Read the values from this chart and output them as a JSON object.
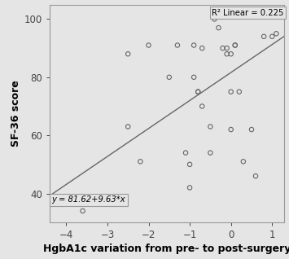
{
  "x_data": [
    -3.6,
    -2.5,
    -2.5,
    -2.2,
    -2.0,
    -1.5,
    -1.3,
    -1.1,
    -1.0,
    -1.0,
    -0.9,
    -0.9,
    -0.8,
    -0.8,
    -0.7,
    -0.7,
    -0.5,
    -0.5,
    -0.4,
    -0.3,
    -0.2,
    -0.1,
    -0.1,
    0.0,
    0.0,
    0.0,
    0.1,
    0.1,
    0.2,
    0.3,
    0.5,
    0.6,
    0.8,
    1.0,
    1.1
  ],
  "y_data": [
    34,
    88,
    63,
    51,
    91,
    80,
    91,
    54,
    42,
    50,
    80,
    91,
    75,
    75,
    70,
    90,
    54,
    63,
    100,
    97,
    90,
    88,
    90,
    75,
    88,
    62,
    91,
    91,
    75,
    51,
    62,
    46,
    94,
    94,
    95
  ],
  "slope": 9.63,
  "intercept": 81.62,
  "r2": 0.225,
  "x_line_start": -4.5,
  "x_line_end": 1.35,
  "xlim": [
    -4.4,
    1.3
  ],
  "ylim": [
    30,
    105
  ],
  "xticks": [
    -4.0,
    -3.0,
    -2.0,
    -1.0,
    0.0,
    1.0
  ],
  "yticks": [
    40,
    60,
    80,
    100
  ],
  "xlabel": "HgbA1c variation from pre- to post-surgery",
  "ylabel": "SF-36 score",
  "eq_label": "y = 81.62+9.63*x",
  "r2_label": "R² Linear = 0.225",
  "bg_color": "#e5e5e5",
  "marker_facecolor": "none",
  "marker_edgecolor": "#666666",
  "line_color": "#666666",
  "box_facecolor": "#e5e5e5",
  "box_edgecolor": "#999999",
  "tick_fontsize": 8.5,
  "label_fontsize": 9,
  "annot_fontsize": 7.2
}
